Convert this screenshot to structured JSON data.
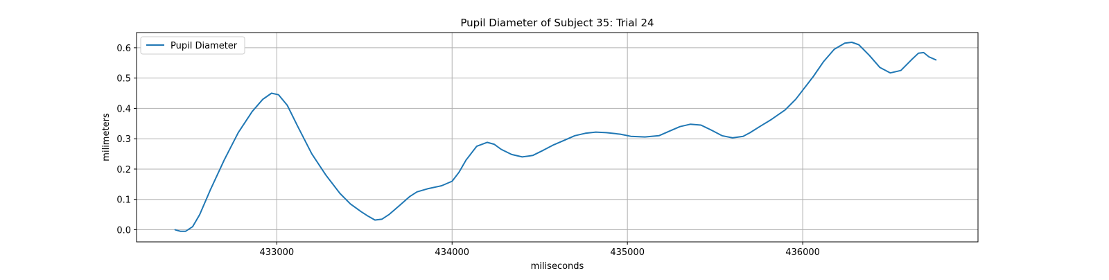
{
  "chart_data": {
    "type": "line",
    "title": "Pupil Diameter of Subject 35: Trial 24",
    "xlabel": "miliseconds",
    "ylabel": "milimeters",
    "xlim": [
      432200,
      437000
    ],
    "ylim": [
      -0.04,
      0.65
    ],
    "xticks": [
      433000,
      434000,
      435000,
      436000
    ],
    "yticks": [
      0.0,
      0.1,
      0.2,
      0.3,
      0.4,
      0.5,
      0.6
    ],
    "ytick_labels": [
      "0.0",
      "0.1",
      "0.2",
      "0.3",
      "0.4",
      "0.5",
      "0.6"
    ],
    "grid": true,
    "legend": {
      "position": "upper-left",
      "entries": [
        "Pupil Diameter"
      ]
    },
    "colors": {
      "line": "#1f77b4",
      "grid": "#b0b0b0"
    },
    "series": [
      {
        "name": "Pupil Diameter",
        "x": [
          432420,
          432450,
          432480,
          432520,
          432560,
          432620,
          432700,
          432780,
          432860,
          432920,
          432970,
          433010,
          433060,
          433120,
          433200,
          433280,
          433360,
          433420,
          433480,
          433520,
          433560,
          433600,
          433640,
          433700,
          433760,
          433800,
          433860,
          433940,
          434000,
          434040,
          434080,
          434140,
          434200,
          434240,
          434280,
          434340,
          434400,
          434460,
          434520,
          434580,
          434640,
          434700,
          434760,
          434820,
          434880,
          434960,
          435020,
          435100,
          435180,
          435240,
          435300,
          435360,
          435420,
          435480,
          435540,
          435600,
          435660,
          435700,
          435760,
          435820,
          435900,
          435960,
          436000,
          436060,
          436120,
          436180,
          436240,
          436280,
          436320,
          436380,
          436440,
          436500,
          436560,
          436620,
          436660,
          436690,
          436720,
          436760
        ],
        "y": [
          0.0,
          -0.005,
          -0.005,
          0.01,
          0.05,
          0.13,
          0.23,
          0.32,
          0.39,
          0.43,
          0.45,
          0.445,
          0.41,
          0.34,
          0.25,
          0.18,
          0.12,
          0.085,
          0.06,
          0.045,
          0.032,
          0.035,
          0.05,
          0.08,
          0.11,
          0.125,
          0.135,
          0.145,
          0.16,
          0.19,
          0.23,
          0.275,
          0.288,
          0.282,
          0.265,
          0.248,
          0.24,
          0.245,
          0.262,
          0.28,
          0.295,
          0.31,
          0.318,
          0.322,
          0.32,
          0.315,
          0.308,
          0.306,
          0.31,
          0.325,
          0.34,
          0.348,
          0.345,
          0.328,
          0.31,
          0.303,
          0.308,
          0.32,
          0.342,
          0.363,
          0.395,
          0.43,
          0.46,
          0.505,
          0.555,
          0.595,
          0.615,
          0.618,
          0.61,
          0.575,
          0.535,
          0.517,
          0.525,
          0.56,
          0.582,
          0.584,
          0.57,
          0.56
        ]
      }
    ]
  }
}
